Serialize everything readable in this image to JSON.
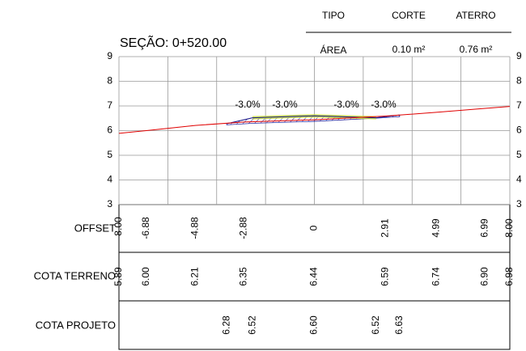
{
  "header": {
    "columns": [
      "TIPO",
      "CORTE",
      "ATERRO"
    ],
    "row": [
      "ÁREA",
      "0.10 m²",
      "0.76 m²"
    ]
  },
  "chart_data": {
    "type": "line",
    "title": "SEÇÃO: 0+520.00",
    "xlim": [
      -8,
      8
    ],
    "xticks": [
      -8,
      -6,
      -4,
      -2,
      0,
      2,
      4,
      6,
      8
    ],
    "ylim": [
      3,
      9
    ],
    "yticks": [
      3,
      4,
      5,
      6,
      7,
      8,
      9
    ],
    "grid": true,
    "x_name": "OFFSET",
    "x": [
      -8,
      -6.88,
      -4.88,
      -2.88,
      0,
      2.91,
      4.99,
      6.99,
      8
    ],
    "x_labels": [
      "-8.00",
      "-6.88",
      "-4.88",
      "-2.88",
      "0",
      "2.91",
      "4.99",
      "6.99",
      "8.00"
    ],
    "series": [
      {
        "name": "COTA TERRENO",
        "color": "#e00000",
        "values": [
          5.89,
          6,
          6.21,
          6.35,
          6.44,
          6.59,
          6.74,
          6.9,
          6.98
        ],
        "value_labels": [
          "5.89",
          "6.00",
          "6.21",
          "6.35",
          "6.44",
          "6.59",
          "6.74",
          "6.90",
          "6.98"
        ]
      },
      {
        "name": "COTA PROJETO",
        "color": "#1a1a8c",
        "x": [
          -3.59,
          -2.53,
          0,
          2.53,
          3.49
        ],
        "values": [
          6.28,
          6.52,
          6.6,
          6.52,
          6.63
        ],
        "value_labels": [
          "6.28",
          "6.52",
          "6.60",
          "6.52",
          "6.63"
        ]
      }
    ],
    "annotations": [
      "-3.0%",
      "-3.0%",
      "-3.0%",
      "-3.0%"
    ]
  }
}
